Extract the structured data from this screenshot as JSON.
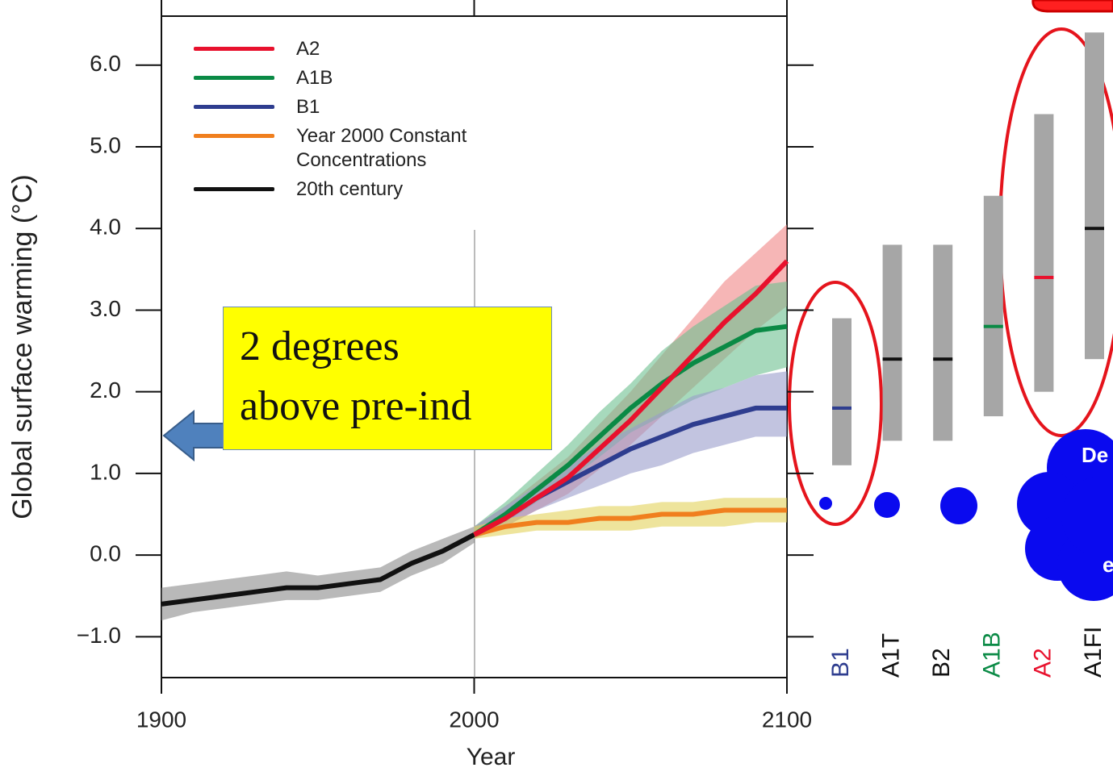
{
  "chart_data": [
    {
      "type": "line",
      "xlabel": "Year",
      "ylabel": "Global surface warming (°C)",
      "xlim": [
        1900,
        2100
      ],
      "xticks": [
        1900,
        2000,
        2100
      ],
      "ylim": [
        -1.5,
        6.6
      ],
      "yticks": [
        {
          "value": -1,
          "label": "−1.0"
        },
        {
          "value": 0,
          "label": "0.0"
        },
        {
          "value": 1,
          "label": "1.0"
        },
        {
          "value": 2,
          "label": "2.0"
        },
        {
          "value": 3,
          "label": "3.0"
        },
        {
          "value": 4,
          "label": "4.0"
        },
        {
          "value": 5,
          "label": "5.0"
        },
        {
          "value": 6,
          "label": "6.0"
        }
      ],
      "series": [
        {
          "name": "A2",
          "color": "#e8112d",
          "band_color": "#f08585",
          "x": [
            2000,
            2010,
            2020,
            2030,
            2040,
            2050,
            2060,
            2070,
            2080,
            2090,
            2100
          ],
          "values": [
            0.25,
            0.45,
            0.7,
            0.95,
            1.3,
            1.65,
            2.05,
            2.45,
            2.85,
            3.2,
            3.6
          ],
          "band_lower": [
            0.2,
            0.35,
            0.55,
            0.75,
            1.05,
            1.35,
            1.7,
            2.05,
            2.4,
            2.75,
            3.05
          ],
          "band_upper": [
            0.35,
            0.6,
            0.9,
            1.2,
            1.6,
            2.0,
            2.45,
            2.9,
            3.35,
            3.7,
            4.05
          ]
        },
        {
          "name": "A1B",
          "color": "#0a8a45",
          "band_color": "#6cc090",
          "x": [
            2000,
            2010,
            2020,
            2030,
            2040,
            2050,
            2060,
            2070,
            2080,
            2090,
            2100
          ],
          "values": [
            0.25,
            0.5,
            0.8,
            1.1,
            1.45,
            1.8,
            2.1,
            2.35,
            2.55,
            2.75,
            2.8
          ],
          "band_lower": [
            0.2,
            0.4,
            0.65,
            0.9,
            1.2,
            1.5,
            1.7,
            1.9,
            2.05,
            2.2,
            2.3
          ],
          "band_upper": [
            0.35,
            0.65,
            1.0,
            1.35,
            1.75,
            2.1,
            2.5,
            2.8,
            3.05,
            3.3,
            3.35
          ]
        },
        {
          "name": "B1",
          "color": "#2e3d8f",
          "band_color": "#9a9ccc",
          "x": [
            2000,
            2010,
            2020,
            2030,
            2040,
            2050,
            2060,
            2070,
            2080,
            2090,
            2100
          ],
          "values": [
            0.25,
            0.45,
            0.7,
            0.9,
            1.1,
            1.3,
            1.45,
            1.6,
            1.7,
            1.8,
            1.8
          ],
          "band_lower": [
            0.2,
            0.35,
            0.55,
            0.7,
            0.85,
            1.0,
            1.1,
            1.25,
            1.35,
            1.45,
            1.45
          ],
          "band_upper": [
            0.35,
            0.6,
            0.85,
            1.1,
            1.35,
            1.55,
            1.75,
            1.95,
            2.05,
            2.2,
            2.25
          ]
        },
        {
          "name": "Year 2000 Constant Concentrations",
          "color": "#f07f1e",
          "band_color": "#e2d25a",
          "x": [
            2000,
            2010,
            2020,
            2030,
            2040,
            2050,
            2060,
            2070,
            2080,
            2090,
            2100
          ],
          "values": [
            0.25,
            0.35,
            0.4,
            0.4,
            0.45,
            0.45,
            0.5,
            0.5,
            0.55,
            0.55,
            0.55
          ],
          "band_lower": [
            0.2,
            0.25,
            0.3,
            0.3,
            0.3,
            0.3,
            0.35,
            0.35,
            0.35,
            0.4,
            0.4
          ],
          "band_upper": [
            0.35,
            0.45,
            0.5,
            0.55,
            0.6,
            0.6,
            0.65,
            0.65,
            0.7,
            0.7,
            0.7
          ]
        },
        {
          "name": "20th century",
          "color": "#111111",
          "band_color": "#8a8a8a",
          "x": [
            1900,
            1910,
            1920,
            1930,
            1940,
            1950,
            1960,
            1970,
            1980,
            1990,
            2000
          ],
          "values": [
            -0.6,
            -0.55,
            -0.5,
            -0.45,
            -0.4,
            -0.4,
            -0.35,
            -0.3,
            -0.1,
            0.05,
            0.25
          ],
          "band_lower": [
            -0.8,
            -0.7,
            -0.65,
            -0.6,
            -0.55,
            -0.55,
            -0.5,
            -0.45,
            -0.25,
            -0.1,
            0.15
          ],
          "band_upper": [
            -0.4,
            -0.35,
            -0.3,
            -0.25,
            -0.2,
            -0.25,
            -0.2,
            -0.15,
            0.05,
            0.2,
            0.35
          ]
        }
      ]
    },
    {
      "type": "range",
      "ylim": [
        -1.5,
        6.6
      ],
      "categories": [
        "B1",
        "A1T",
        "B2",
        "A1B",
        "A2",
        "A1FI"
      ],
      "category_colors": [
        "#2e3d8f",
        "#111111",
        "#111111",
        "#0a8a45",
        "#e8112d",
        "#111111"
      ],
      "bar_color": "#a6a6a6",
      "low": [
        1.1,
        1.4,
        1.4,
        1.7,
        2.0,
        2.4
      ],
      "high": [
        2.9,
        3.8,
        3.8,
        4.4,
        5.4,
        6.4
      ],
      "best": [
        1.8,
        2.4,
        2.4,
        2.8,
        3.4,
        4.0
      ]
    }
  ],
  "annotation": {
    "lines": [
      "2 degrees",
      "above pre-ind"
    ]
  },
  "cloud_text": [
    "De",
    "e"
  ]
}
